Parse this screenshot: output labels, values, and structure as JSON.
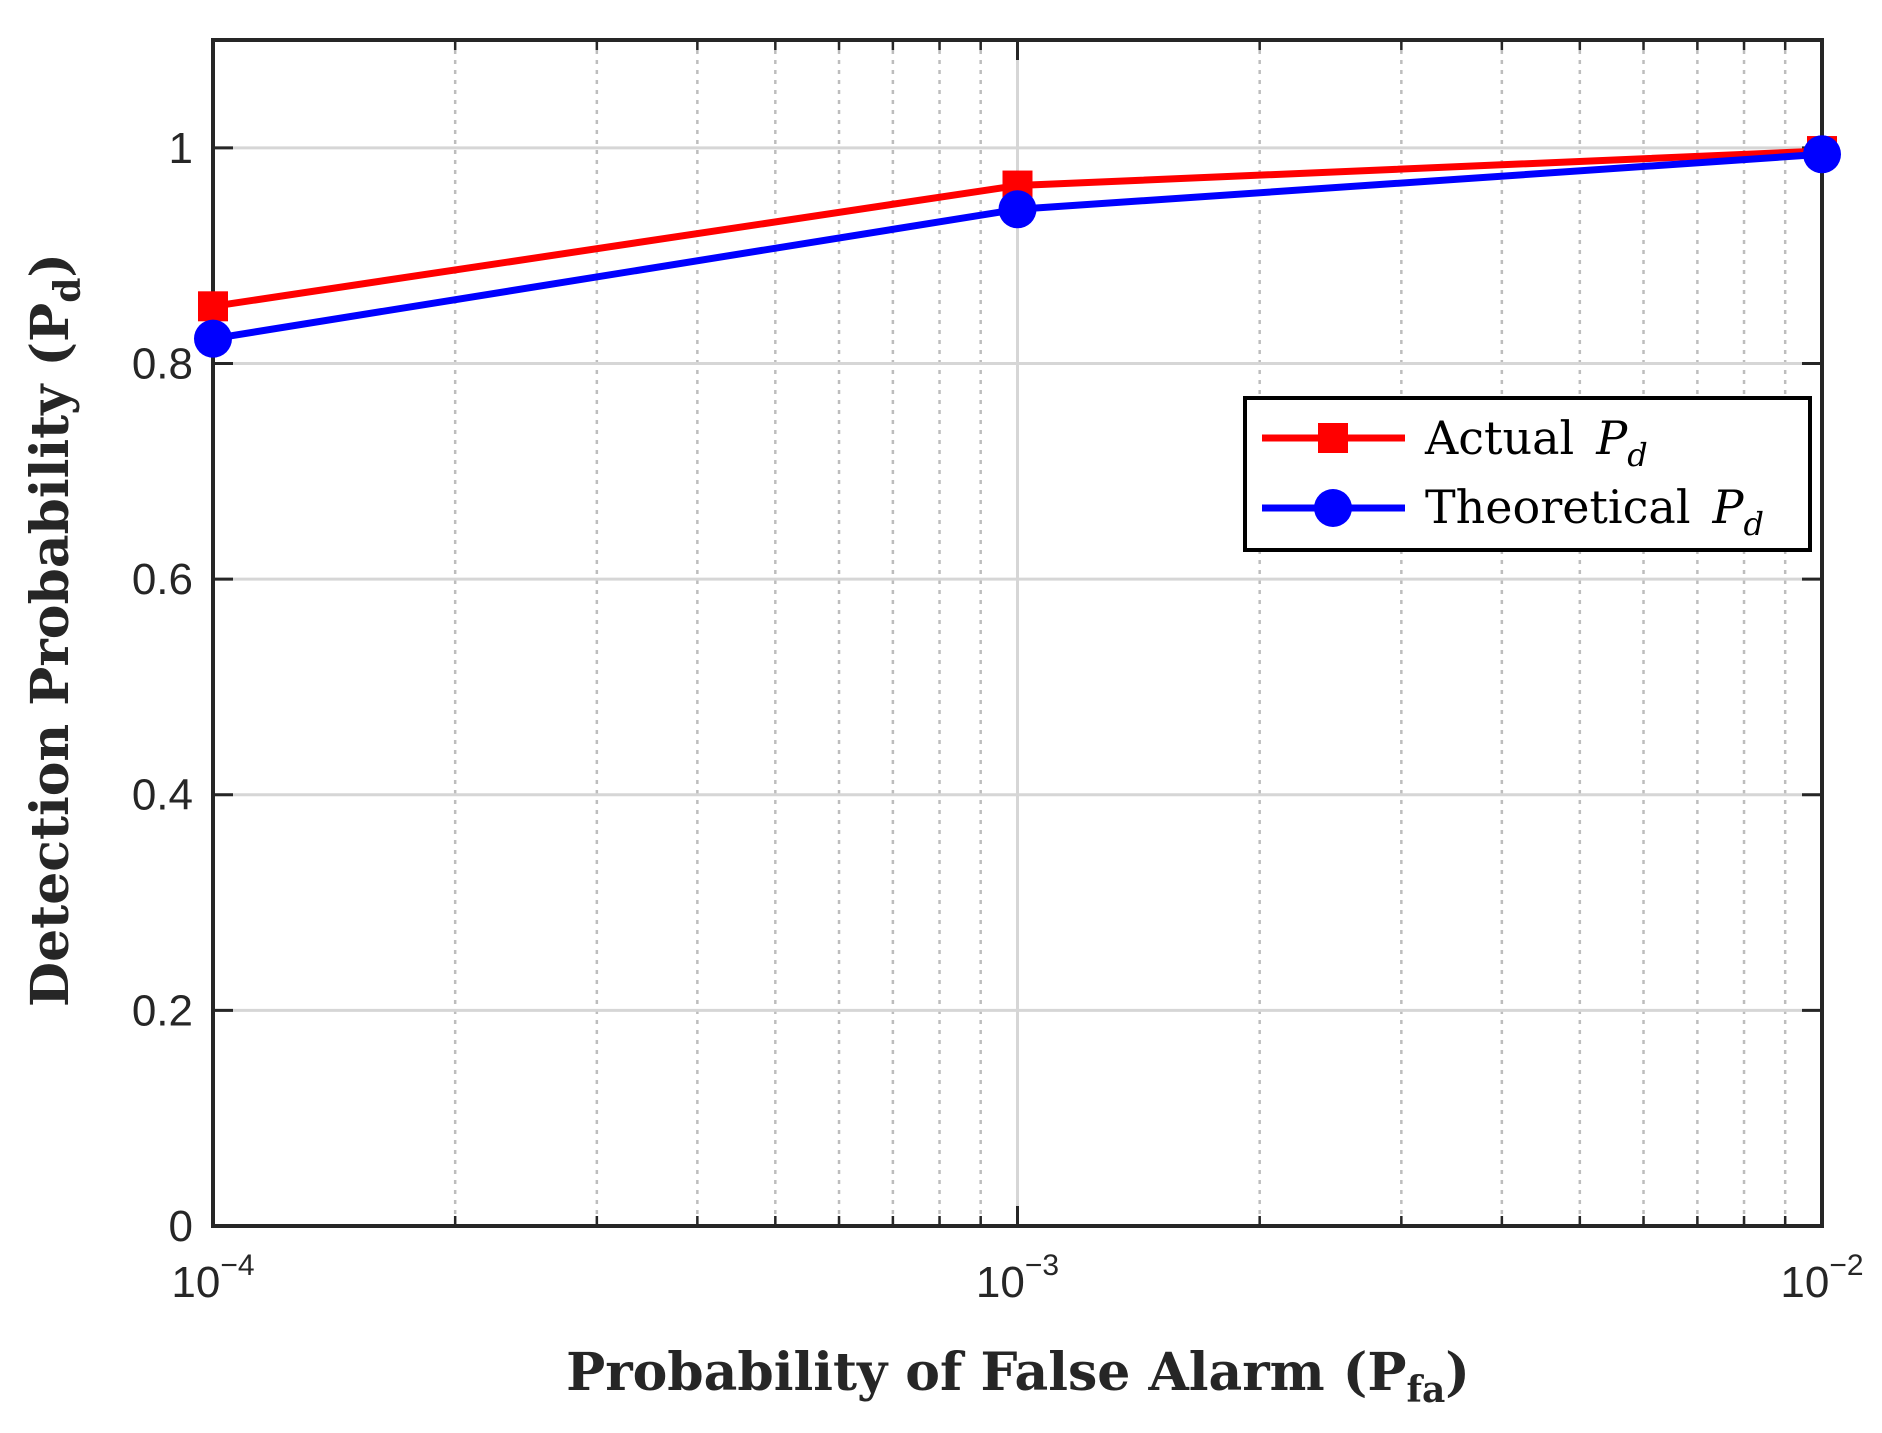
{
  "chart_data": {
    "type": "line",
    "xscale": "log",
    "x": [
      0.0001,
      0.001,
      0.01
    ],
    "xlim": [
      0.0001,
      0.01
    ],
    "ylim": [
      0,
      1.1
    ],
    "xticks": [
      {
        "value": 0.0001,
        "base": "10",
        "exp": "−4"
      },
      {
        "value": 0.001,
        "base": "10",
        "exp": "−3"
      },
      {
        "value": 0.01,
        "base": "10",
        "exp": "−2"
      }
    ],
    "yticks": [
      {
        "value": 0,
        "label": "0"
      },
      {
        "value": 0.2,
        "label": "0.2"
      },
      {
        "value": 0.4,
        "label": "0.4"
      },
      {
        "value": 0.6,
        "label": "0.6"
      },
      {
        "value": 0.8,
        "label": "0.8"
      },
      {
        "value": 1,
        "label": "1"
      }
    ],
    "xlabel": {
      "main": "Probability of False Alarm (P",
      "sub": "fa",
      "close": ")"
    },
    "ylabel": {
      "main": "Detection Probability (P",
      "sub": "d",
      "close": ")"
    },
    "grid": true,
    "minor_grid": true,
    "legend_position": "right",
    "series": [
      {
        "name": "Actual",
        "name_math": "P",
        "name_math_sub": "d",
        "color": "#ff0000",
        "marker": "square",
        "values": [
          0.853,
          0.965,
          0.997
        ]
      },
      {
        "name": "Theoretical",
        "name_math": "P",
        "name_math_sub": "d",
        "color": "#0000ff",
        "marker": "circle",
        "values": [
          0.823,
          0.943,
          0.994
        ]
      }
    ]
  }
}
